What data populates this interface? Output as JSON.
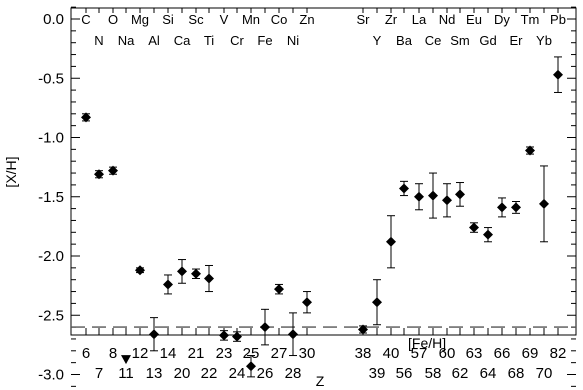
{
  "chart_data": {
    "type": "scatter",
    "xlabel": "Z",
    "ylabel": "[X/H]",
    "ylim": [
      -3.3,
      0.2
    ],
    "xlim": [
      4.5,
      84.5
    ],
    "y_ticks": [
      "0.0",
      "-0.5",
      "-1.0",
      "-1.5",
      "-2.0",
      "-2.5",
      "-3.0"
    ],
    "x_tick_row1": [
      "6",
      "8",
      "12",
      "14",
      "21",
      "23",
      "25",
      "27",
      "30",
      "38",
      "40",
      "57",
      "60",
      "63",
      "66",
      "69",
      "82"
    ],
    "x_tick_row2": [
      "7",
      "11",
      "13",
      "20",
      "22",
      "24",
      "26",
      "28",
      "39",
      "56",
      "58",
      "62",
      "64",
      "68",
      "70"
    ],
    "element_row1": [
      "C",
      "O",
      "Mg",
      "Si",
      "Sc",
      "V",
      "Mn",
      "Co",
      "Zn",
      "Sr",
      "Zr",
      "La",
      "Nd",
      "Eu",
      "Dy",
      "Tm",
      "Pb"
    ],
    "element_row2": [
      "N",
      "Na",
      "Al",
      "Ca",
      "Ti",
      "Cr",
      "Fe",
      "Ni",
      "Y",
      "Ba",
      "Ce",
      "Sm",
      "Gd",
      "Er",
      "Yb"
    ],
    "reference_line": {
      "label": "[Fe/H]",
      "y": -2.6,
      "style": "dashed"
    },
    "points": [
      {
        "el": "C",
        "y": -0.83,
        "err": 0.03,
        "marker": "diamond"
      },
      {
        "el": "N",
        "y": -1.31,
        "err": 0.03,
        "marker": "diamond"
      },
      {
        "el": "O",
        "y": -1.28,
        "err": 0.03,
        "marker": "diamond"
      },
      {
        "el": "Na",
        "y": -2.87,
        "err": 0,
        "marker": "triangle-down"
      },
      {
        "el": "Mg",
        "y": -2.12,
        "err": 0.02,
        "marker": "diamond"
      },
      {
        "el": "Al",
        "y": -2.66,
        "err": 0.14,
        "marker": "diamond"
      },
      {
        "el": "Si",
        "y": -2.24,
        "err": 0.08,
        "marker": "diamond"
      },
      {
        "el": "Ca",
        "y": -2.13,
        "err": 0.1,
        "marker": "diamond"
      },
      {
        "el": "Sc",
        "y": -2.15,
        "err": 0.04,
        "marker": "diamond"
      },
      {
        "el": "Ti",
        "y": -2.19,
        "err": 0.11,
        "marker": "diamond"
      },
      {
        "el": "V",
        "y": -2.67,
        "err": 0.04,
        "marker": "diamond"
      },
      {
        "el": "Cr",
        "y": -2.68,
        "err": 0.04,
        "marker": "diamond"
      },
      {
        "el": "Mn",
        "y": -2.93,
        "err": 0.09,
        "marker": "diamond"
      },
      {
        "el": "Fe",
        "y": -2.6,
        "err": 0.15,
        "marker": "diamond"
      },
      {
        "el": "Co",
        "y": -2.28,
        "err": 0.04,
        "marker": "diamond"
      },
      {
        "el": "Ni",
        "y": -2.66,
        "err": 0.18,
        "marker": "diamond"
      },
      {
        "el": "Zn",
        "y": -2.39,
        "err": 0.09,
        "marker": "diamond"
      },
      {
        "el": "Sr",
        "y": -2.62,
        "err": 0.03,
        "marker": "diamond"
      },
      {
        "el": "Y",
        "y": -2.39,
        "err": 0.19,
        "marker": "diamond"
      },
      {
        "el": "Zr",
        "y": -1.88,
        "err": 0.22,
        "marker": "diamond"
      },
      {
        "el": "Ba",
        "y": -1.43,
        "err": 0.06,
        "marker": "diamond"
      },
      {
        "el": "La",
        "y": -1.5,
        "err": 0.11,
        "marker": "diamond"
      },
      {
        "el": "Ce",
        "y": -1.49,
        "err": 0.19,
        "marker": "diamond"
      },
      {
        "el": "Nd",
        "y": -1.53,
        "err": 0.14,
        "marker": "diamond"
      },
      {
        "el": "Sm",
        "y": -1.48,
        "err": 0.1,
        "marker": "diamond"
      },
      {
        "el": "Eu",
        "y": -1.76,
        "err": 0.04,
        "marker": "diamond"
      },
      {
        "el": "Gd",
        "y": -1.82,
        "err": 0.06,
        "marker": "diamond"
      },
      {
        "el": "Dy",
        "y": -1.59,
        "err": 0.08,
        "marker": "diamond"
      },
      {
        "el": "Er",
        "y": -1.59,
        "err": 0.05,
        "marker": "diamond"
      },
      {
        "el": "Tm",
        "y": -1.11,
        "err": 0.03,
        "marker": "diamond"
      },
      {
        "el": "Yb",
        "y": -1.56,
        "err": 0.32,
        "marker": "diamond"
      },
      {
        "el": "Pb",
        "y": -0.47,
        "err": 0.15,
        "marker": "diamond"
      }
    ]
  }
}
